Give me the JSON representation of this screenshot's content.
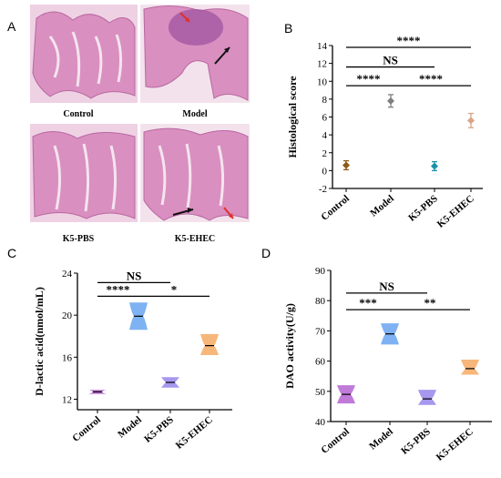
{
  "panel_labels": [
    "A",
    "B",
    "C",
    "D"
  ],
  "histology": {
    "captions": [
      "Control",
      "Model",
      "K5-PBS",
      "K5-EHEC"
    ],
    "tissue_color": "#d98fc0",
    "arrow_colors": {
      "red": "#e0302a",
      "black": "#111111"
    }
  },
  "chart_data": [
    {
      "type": "scatter",
      "panel": "B",
      "ylabel": "Histological score",
      "ylim": [
        -2,
        14
      ],
      "yticks": [
        -2,
        0,
        2,
        4,
        6,
        8,
        10,
        12,
        14
      ],
      "categories": [
        "Control",
        "Model",
        "K5-PBS",
        "K5-EHEC"
      ],
      "mean": [
        0.6,
        7.8,
        0.5,
        5.6
      ],
      "error": [
        0.5,
        0.7,
        0.5,
        0.8
      ],
      "colors": [
        "#8b5a16",
        "#7f7f7f",
        "#1b91a8",
        "#d9a58a"
      ],
      "significance": [
        {
          "from": 0,
          "to": 3,
          "label": "****",
          "y": 13.8
        },
        {
          "from": 0,
          "to": 2,
          "label": "NS",
          "y": 11.6
        },
        {
          "from": 0,
          "to": 1,
          "label": "****",
          "y": 9.5
        },
        {
          "from": 1,
          "to": 3,
          "label": "****",
          "y": 9.5
        }
      ]
    },
    {
      "type": "violin",
      "panel": "C",
      "ylabel": "D-lactic acid(nmol/mL)",
      "ylim": [
        11,
        24
      ],
      "yticks": [
        12,
        16,
        20,
        24
      ],
      "categories": [
        "Control",
        "Model",
        "K5-PBS",
        "K5-EHEC"
      ],
      "median": [
        12.7,
        19.9,
        13.6,
        17.1
      ],
      "range": [
        [
          12.5,
          12.9
        ],
        [
          18.6,
          21.2
        ],
        [
          13.1,
          14.1
        ],
        [
          16.2,
          18.2
        ]
      ],
      "colors": [
        "#c07ad8",
        "#7fb2f2",
        "#a797ef",
        "#f7b77b"
      ],
      "significance": [
        {
          "from": 0,
          "to": 2,
          "label": "NS",
          "y": 23.1
        },
        {
          "from": 0,
          "to": 1,
          "label": "****",
          "y": 21.8
        },
        {
          "from": 1,
          "to": 3,
          "label": "*",
          "y": 21.8
        }
      ]
    },
    {
      "type": "violin",
      "panel": "D",
      "ylabel": "DAO activity(U/g)",
      "ylim": [
        40,
        90
      ],
      "yticks": [
        40,
        50,
        60,
        70,
        80,
        90
      ],
      "categories": [
        "Control",
        "Model",
        "K5-PBS",
        "K5-EHEC"
      ],
      "median": [
        49,
        69,
        47.5,
        57.5
      ],
      "range": [
        [
          46,
          52
        ],
        [
          65.5,
          72.5
        ],
        [
          45.5,
          50.5
        ],
        [
          55.5,
          60.5
        ]
      ],
      "colors": [
        "#c07ad8",
        "#7fb2f2",
        "#a797ef",
        "#f7b77b"
      ],
      "significance": [
        {
          "from": 0,
          "to": 2,
          "label": "NS",
          "y": 82.5
        },
        {
          "from": 0,
          "to": 1,
          "label": "***",
          "y": 77
        },
        {
          "from": 1,
          "to": 3,
          "label": "**",
          "y": 77
        }
      ]
    }
  ]
}
